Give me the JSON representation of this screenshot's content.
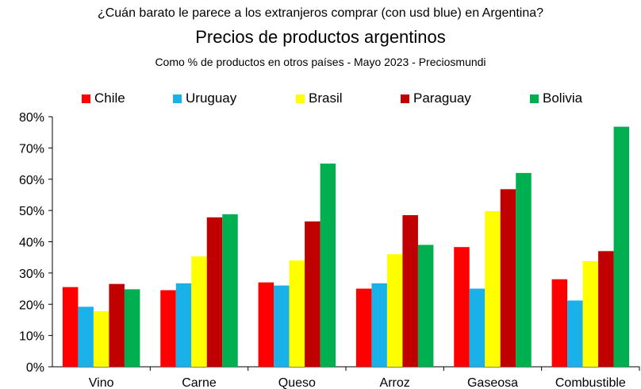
{
  "chart_data": {
    "type": "bar",
    "suptitle": "¿Cuán barato le parece a los extranjeros comprar (con usd blue) en Argentina?",
    "title": "Precios de productos argentinos",
    "subtitle": "Como % de productos en otros países - Mayo 2023 - Preciosmundi",
    "categories": [
      "Vino",
      "Carne",
      "Queso",
      "Arroz",
      "Gaseosa",
      "Combustible"
    ],
    "series": [
      {
        "name": "Chile",
        "color": "#ff0000",
        "values": [
          25.5,
          24.5,
          27.0,
          25.0,
          38.3,
          28.0
        ]
      },
      {
        "name": "Uruguay",
        "color": "#1ab0e8",
        "values": [
          19.2,
          26.7,
          26.0,
          26.7,
          25.0,
          21.2
        ]
      },
      {
        "name": "Brasil",
        "color": "#ffff00",
        "values": [
          17.8,
          35.3,
          34.0,
          36.0,
          49.8,
          33.8
        ]
      },
      {
        "name": "Paraguay",
        "color": "#c00000",
        "values": [
          26.5,
          47.8,
          46.5,
          48.5,
          56.8,
          37.0
        ]
      },
      {
        "name": "Bolivia",
        "color": "#00b050",
        "values": [
          24.8,
          48.8,
          65.0,
          39.0,
          62.0,
          76.8
        ]
      }
    ],
    "ylim": [
      0,
      80
    ],
    "yticks": [
      "0%",
      "10%",
      "20%",
      "30%",
      "40%",
      "50%",
      "60%",
      "70%",
      "80%"
    ],
    "legend_position": "top",
    "grid": false
  }
}
